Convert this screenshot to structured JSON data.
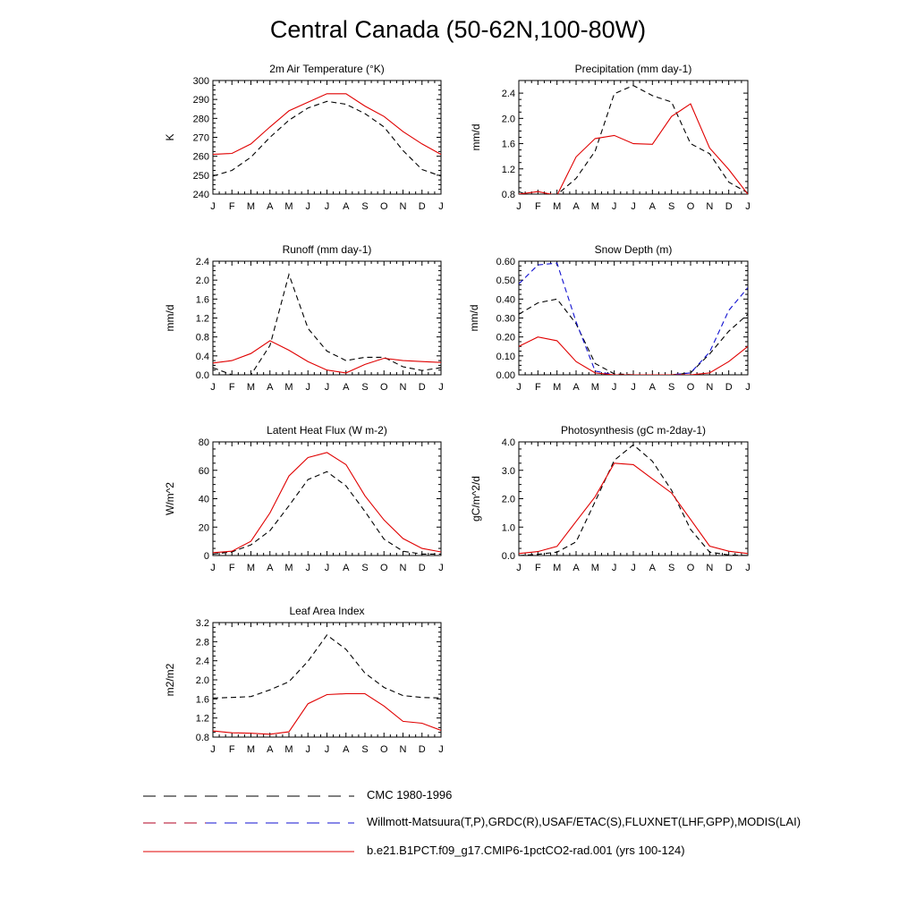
{
  "title": "Central Canada (50-62N,100-80W)",
  "months": [
    "J",
    "F",
    "M",
    "A",
    "M",
    "J",
    "J",
    "A",
    "S",
    "O",
    "N",
    "D",
    "J"
  ],
  "chart_data": [
    {
      "type": "line",
      "title": "2m Air Temperature (°K)",
      "ylabel": "K",
      "ylim": [
        240,
        300
      ],
      "yticks": [
        240,
        250,
        260,
        270,
        280,
        290,
        300
      ],
      "ytick_labels": [
        "240",
        "250",
        "260",
        "270",
        "280",
        "290",
        "300"
      ],
      "series": [
        {
          "color": "#000000",
          "dash": "black",
          "values": [
            249.5,
            252.5,
            259.5,
            270,
            279,
            285.5,
            289,
            287.5,
            282.5,
            275.5,
            263,
            253,
            249.5
          ]
        },
        {
          "color": "#e00000",
          "dash": "solid",
          "values": [
            261,
            261.5,
            266.5,
            275.5,
            284,
            288.5,
            293,
            293,
            286.5,
            281,
            273,
            266.5,
            261
          ]
        }
      ]
    },
    {
      "type": "line",
      "title": "Precipitation (mm day-1)",
      "ylabel": "mm/d",
      "ylim": [
        0.8,
        2.6
      ],
      "yticks": [
        0.8,
        1.2,
        1.6,
        2.0,
        2.4
      ],
      "ytick_labels": [
        "0.8",
        "1.2",
        "1.6",
        "2.0",
        "2.4"
      ],
      "series": [
        {
          "color": "#000000",
          "dash": "black",
          "values": [
            0.84,
            0.72,
            0.79,
            1.05,
            1.48,
            2.39,
            2.52,
            2.36,
            2.26,
            1.6,
            1.44,
            0.99,
            0.82
          ]
        },
        {
          "color": "#e00000",
          "dash": "solid",
          "values": [
            0.8,
            0.84,
            0.78,
            1.39,
            1.68,
            1.73,
            1.6,
            1.59,
            2.03,
            2.23,
            1.53,
            1.19,
            0.8
          ]
        }
      ]
    },
    {
      "type": "line",
      "title": "Runoff (mm day-1)",
      "ylabel": "mm/d",
      "ylim": [
        0,
        2.4
      ],
      "yticks": [
        0,
        0.4,
        0.8,
        1.2,
        1.6,
        2.0,
        2.4
      ],
      "ytick_labels": [
        "0.0",
        "0.4",
        "0.8",
        "1.2",
        "1.6",
        "2.0",
        "2.4"
      ],
      "series": [
        {
          "color": "#000000",
          "dash": "black",
          "values": [
            0.15,
            0.0,
            0.0,
            0.62,
            2.12,
            0.98,
            0.5,
            0.3,
            0.37,
            0.37,
            0.17,
            0.09,
            0.15
          ]
        },
        {
          "color": "#e00000",
          "dash": "solid",
          "values": [
            0.25,
            0.3,
            0.45,
            0.72,
            0.52,
            0.28,
            0.1,
            0.04,
            0.22,
            0.35,
            0.3,
            0.28,
            0.26
          ]
        }
      ]
    },
    {
      "type": "line",
      "title": "Snow Depth (m)",
      "ylabel": "mm/d",
      "ylim": [
        0,
        0.6
      ],
      "yticks": [
        0,
        0.1,
        0.2,
        0.3,
        0.4,
        0.5,
        0.6
      ],
      "ytick_labels": [
        "0.00",
        "0.10",
        "0.20",
        "0.30",
        "0.40",
        "0.50",
        "0.60"
      ],
      "series": [
        {
          "color": "#000000",
          "dash": "black",
          "values": [
            0.32,
            0.38,
            0.4,
            0.27,
            0.06,
            0.005,
            0.0,
            0.0,
            0.0,
            0.01,
            0.11,
            0.23,
            0.32
          ]
        },
        {
          "color": "#1010d0",
          "dash": "blue",
          "values": [
            0.48,
            0.58,
            0.59,
            0.28,
            0.02,
            0.0,
            0.0,
            0.0,
            0.0,
            0.01,
            0.12,
            0.34,
            0.46
          ]
        },
        {
          "color": "#e00000",
          "dash": "solid",
          "values": [
            0.15,
            0.2,
            0.18,
            0.07,
            0.01,
            0.0,
            0.0,
            0.0,
            0.0,
            0.0,
            0.01,
            0.07,
            0.15
          ]
        }
      ]
    },
    {
      "type": "line",
      "title": "Latent Heat Flux (W m-2)",
      "ylabel": "W/m^2",
      "ylim": [
        0,
        80
      ],
      "yticks": [
        0,
        20,
        40,
        60,
        80
      ],
      "ytick_labels": [
        "0",
        "20",
        "40",
        "60",
        "80"
      ],
      "series": [
        {
          "color": "#000000",
          "dash": "black",
          "values": [
            1,
            2.5,
            7.5,
            17.5,
            35,
            53.5,
            59,
            49,
            31,
            11.5,
            3,
            1,
            1
          ]
        },
        {
          "color": "#e00000",
          "dash": "solid",
          "values": [
            2,
            3,
            10,
            30,
            56,
            69,
            72.5,
            64,
            42,
            25,
            12,
            5,
            2.5
          ]
        }
      ]
    },
    {
      "type": "line",
      "title": "Photosynthesis (gC m-2day-1)",
      "ylabel": "gC/m^2/d",
      "ylim": [
        0,
        4
      ],
      "yticks": [
        0,
        1,
        2,
        3,
        4
      ],
      "ytick_labels": [
        "0.0",
        "1.0",
        "2.0",
        "3.0",
        "4.0"
      ],
      "series": [
        {
          "color": "#000000",
          "dash": "black",
          "values": [
            0.0,
            0.04,
            0.12,
            0.48,
            1.9,
            3.35,
            3.9,
            3.32,
            2.3,
            0.92,
            0.12,
            0.02,
            0.0
          ]
        },
        {
          "color": "#e00000",
          "dash": "solid",
          "values": [
            0.07,
            0.14,
            0.32,
            1.2,
            2.07,
            3.25,
            3.2,
            2.7,
            2.2,
            1.27,
            0.33,
            0.15,
            0.07
          ]
        }
      ]
    },
    {
      "type": "line",
      "title": "Leaf Area Index",
      "ylabel": "m2/m2",
      "ylim": [
        0.8,
        3.2
      ],
      "yticks": [
        0.8,
        1.2,
        1.6,
        2.0,
        2.4,
        2.8,
        3.2
      ],
      "ytick_labels": [
        "0.8",
        "1.2",
        "1.6",
        "2.0",
        "2.4",
        "2.8",
        "3.2"
      ],
      "series": [
        {
          "color": "#000000",
          "dash": "black",
          "values": [
            1.62,
            1.63,
            1.65,
            1.79,
            1.96,
            2.39,
            2.94,
            2.64,
            2.14,
            1.84,
            1.67,
            1.63,
            1.62
          ]
        },
        {
          "color": "#e00000",
          "dash": "solid",
          "values": [
            0.93,
            0.89,
            0.88,
            0.86,
            0.91,
            1.5,
            1.69,
            1.71,
            1.71,
            1.45,
            1.13,
            1.09,
            0.94
          ]
        }
      ]
    }
  ],
  "legend": [
    {
      "label": "CMC 1980-1996",
      "style": "black"
    },
    {
      "label": "Willmott-Matsuura(T,P),GRDC(R),USAF/ETAC(S),FLUXNET(LHF,GPP),MODIS(LAI)",
      "style": "mixed"
    },
    {
      "label": "b.e21.B1PCT.f09_g17.CMIP6-1pctCO2-rad.001 (yrs 100-124)",
      "style": "solid"
    }
  ]
}
